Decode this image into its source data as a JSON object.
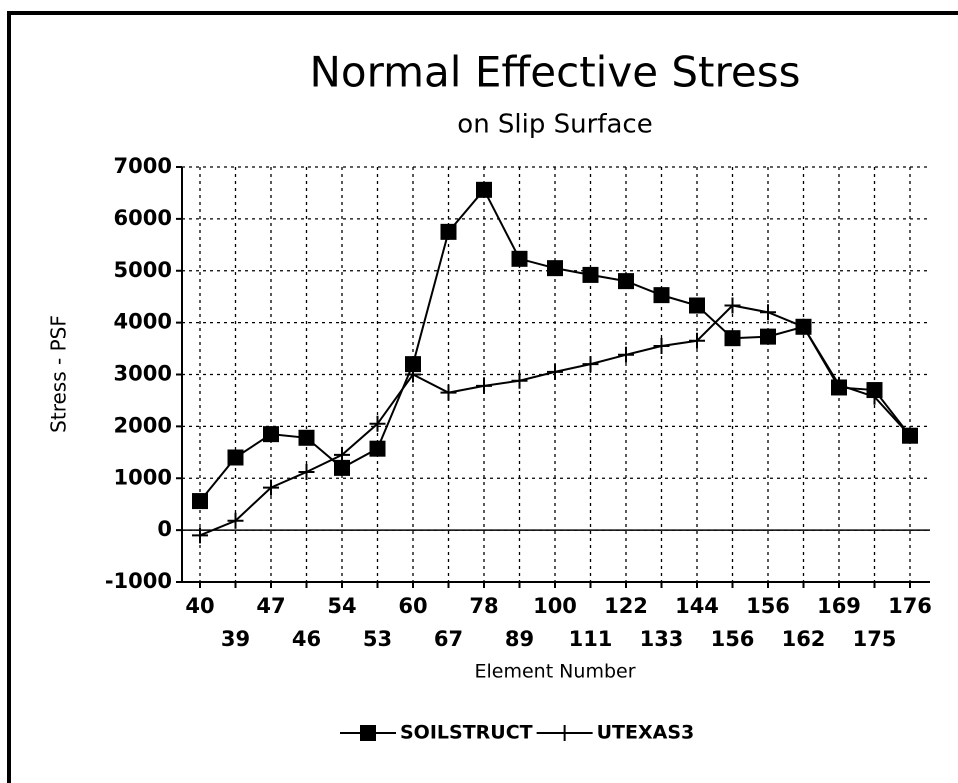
{
  "chart_data": {
    "type": "line",
    "title": "Normal Effective Stress",
    "subtitle": "on Slip Surface",
    "xlabel": "Element Number",
    "ylabel": "Stress - PSF",
    "categories": [
      "40",
      "39",
      "47",
      "46",
      "54",
      "53",
      "60",
      "67",
      "78",
      "89",
      "100",
      "111",
      "122",
      "133",
      "144",
      "156",
      "156",
      "162",
      "169",
      "175",
      "176"
    ],
    "series": [
      {
        "name": "SOILSTRUCT",
        "color": "#000000",
        "marker": "square",
        "values": [
          560,
          1400,
          1850,
          1780,
          1200,
          1570,
          3200,
          5750,
          6560,
          5230,
          5050,
          4920,
          4800,
          4530,
          4330,
          3700,
          3730,
          3920,
          2750,
          2700,
          1820
        ]
      },
      {
        "name": "UTEXAS3",
        "color": "#000000",
        "marker": "plus",
        "values": [
          -100,
          180,
          820,
          1120,
          1450,
          2050,
          3000,
          2650,
          2780,
          2880,
          3050,
          3200,
          3380,
          3550,
          3650,
          4330,
          4200,
          3920,
          2800,
          2570,
          1820
        ]
      }
    ],
    "ylim": [
      -1000,
      7000
    ],
    "yticks": [
      -1000,
      0,
      1000,
      2000,
      3000,
      4000,
      5000,
      6000,
      7000
    ],
    "grid": true,
    "legend": "bottom"
  }
}
